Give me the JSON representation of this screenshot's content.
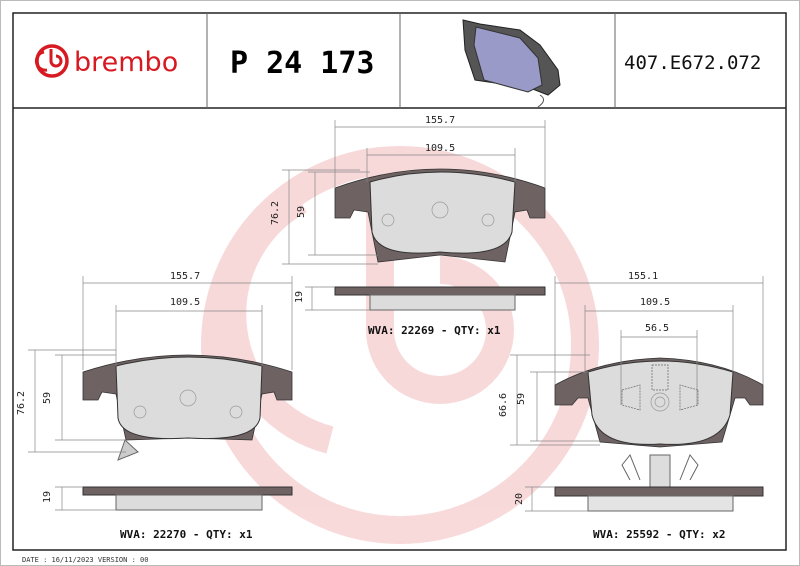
{
  "header": {
    "brand": "brembo",
    "part_number": "P 24 173",
    "reference": "407.E672.072",
    "brand_color": "#d71a21"
  },
  "pads": [
    {
      "width": "155.7",
      "inner_width": "109.5",
      "height": "76.2",
      "inner_height": "59",
      "thickness": "19",
      "label": "WVA: 22269 - QTY: x1"
    },
    {
      "width": "155.7",
      "inner_width": "109.5",
      "height": "76.2",
      "inner_height": "59",
      "thickness": "19",
      "label": "WVA: 22270 - QTY: x1"
    },
    {
      "width": "155.1",
      "inner_width": "109.5",
      "center_width": "56.5",
      "height": "66.6",
      "inner_height": "59",
      "thickness": "20",
      "label": "WVA: 25592 - QTY: x2"
    }
  ],
  "footer": "DATE : 16/11/2023 VERSION : 00"
}
